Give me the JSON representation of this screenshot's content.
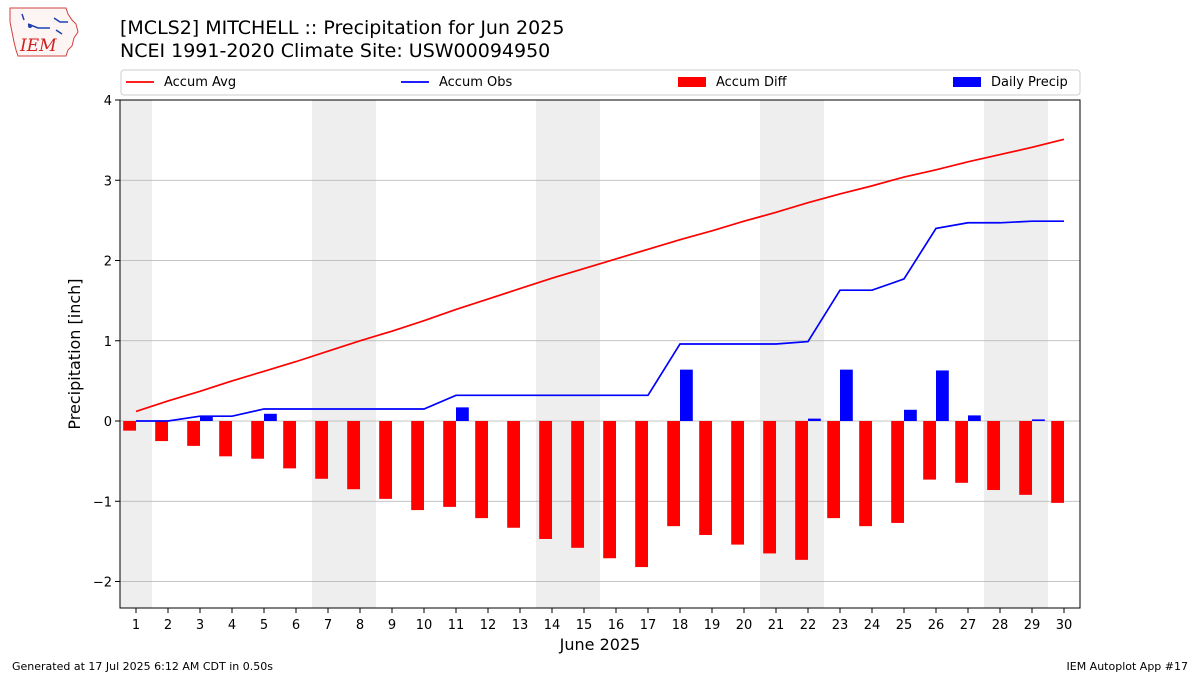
{
  "header": {
    "title_line1": "[MCLS2] MITCHELL :: Precipitation for Jun 2025",
    "title_line2": "NCEI 1991-2020 Climate Site: USW00094950",
    "logo_text": "IEM"
  },
  "footer": {
    "generated": "Generated at 17 Jul 2025 6:12 AM CDT in 0.50s",
    "app": "IEM Autoplot App #17"
  },
  "colors": {
    "accum_avg": "#ff0000",
    "accum_obs": "#0000ff",
    "accum_diff": "#ff0000",
    "daily_precip": "#0000ff",
    "weekend_shade": "#eeeeee",
    "grid": "#b0b0b0"
  },
  "chart_data": {
    "type": "bar",
    "xlabel": "June 2025",
    "ylabel": "Precipitation [inch]",
    "ylim": [
      -2.33,
      4.0
    ],
    "yticks": [
      -2,
      -1,
      0,
      1,
      2,
      3,
      4
    ],
    "ytick_labels": [
      "−2",
      "−1",
      "0",
      "1",
      "2",
      "3",
      "4"
    ],
    "grid": true,
    "legend_position": "top",
    "x": [
      1,
      2,
      3,
      4,
      5,
      6,
      7,
      8,
      9,
      10,
      11,
      12,
      13,
      14,
      15,
      16,
      17,
      18,
      19,
      20,
      21,
      22,
      23,
      24,
      25,
      26,
      27,
      28,
      29,
      30
    ],
    "weekend_days": [
      1,
      7,
      8,
      14,
      15,
      21,
      22,
      28,
      29
    ],
    "series": [
      {
        "name": "Accum Avg",
        "kind": "line",
        "values": [
          0.12,
          0.25,
          0.37,
          0.5,
          0.62,
          0.74,
          0.87,
          1.0,
          1.12,
          1.25,
          1.39,
          1.52,
          1.65,
          1.78,
          1.9,
          2.02,
          2.14,
          2.26,
          2.37,
          2.49,
          2.6,
          2.72,
          2.83,
          2.93,
          3.04,
          3.13,
          3.23,
          3.32,
          3.41,
          3.51
        ]
      },
      {
        "name": "Accum Obs",
        "kind": "line",
        "values": [
          0.0,
          0.0,
          0.06,
          0.06,
          0.15,
          0.15,
          0.15,
          0.15,
          0.15,
          0.15,
          0.32,
          0.32,
          0.32,
          0.32,
          0.32,
          0.32,
          0.32,
          0.96,
          0.96,
          0.96,
          0.96,
          0.99,
          1.63,
          1.63,
          1.77,
          2.4,
          2.47,
          2.47,
          2.49,
          2.49
        ]
      },
      {
        "name": "Accum Diff",
        "kind": "bar",
        "values": [
          -0.12,
          -0.25,
          -0.31,
          -0.44,
          -0.47,
          -0.59,
          -0.72,
          -0.85,
          -0.97,
          -1.11,
          -1.07,
          -1.21,
          -1.33,
          -1.47,
          -1.58,
          -1.71,
          -1.82,
          -1.31,
          -1.42,
          -1.54,
          -1.65,
          -1.73,
          -1.21,
          -1.31,
          -1.27,
          -0.73,
          -0.77,
          -0.86,
          -0.92,
          -1.02
        ]
      },
      {
        "name": "Daily Precip",
        "kind": "bar",
        "values": [
          0,
          0,
          0.06,
          0,
          0.09,
          0,
          0,
          0,
          0,
          0,
          0.17,
          0,
          0,
          0,
          0,
          0,
          0,
          0.64,
          0,
          0,
          0,
          0.03,
          0.64,
          0,
          0.14,
          0.63,
          0.07,
          0,
          0.02,
          0
        ]
      }
    ]
  }
}
